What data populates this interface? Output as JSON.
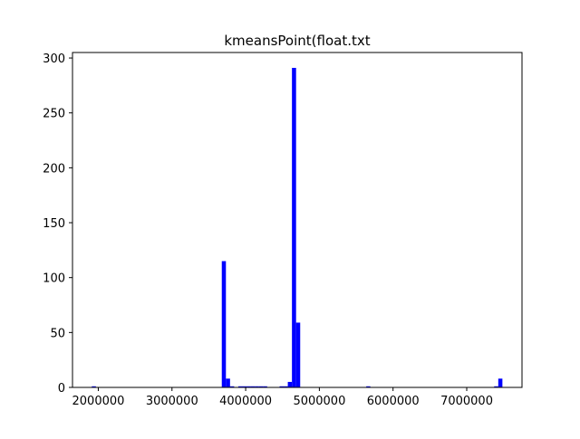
{
  "chart_data": {
    "type": "bar",
    "title": "kmeansPoint(float.txt",
    "xlabel": "",
    "ylabel": "",
    "xlim": [
      1650000,
      7750000
    ],
    "ylim": [
      0,
      305
    ],
    "bin_width": 56000,
    "color": "#0000ff",
    "xticks": [
      2000000,
      3000000,
      4000000,
      5000000,
      6000000,
      7000000
    ],
    "xtick_labels": [
      "2000000",
      "3000000",
      "4000000",
      "5000000",
      "6000000",
      "7000000"
    ],
    "yticks": [
      0,
      50,
      100,
      150,
      200,
      250,
      300
    ],
    "ytick_labels": [
      "0",
      "50",
      "100",
      "150",
      "200",
      "250",
      "300"
    ],
    "bars": [
      {
        "x": 1912000,
        "value": 1
      },
      {
        "x": 3676000,
        "value": 115
      },
      {
        "x": 3732000,
        "value": 8
      },
      {
        "x": 3788000,
        "value": 1
      },
      {
        "x": 3900000,
        "value": 1
      },
      {
        "x": 3956000,
        "value": 1
      },
      {
        "x": 4012000,
        "value": 1
      },
      {
        "x": 4068000,
        "value": 1
      },
      {
        "x": 4124000,
        "value": 1
      },
      {
        "x": 4180000,
        "value": 1
      },
      {
        "x": 4236000,
        "value": 1
      },
      {
        "x": 4460000,
        "value": 1
      },
      {
        "x": 4516000,
        "value": 1
      },
      {
        "x": 4572000,
        "value": 5
      },
      {
        "x": 4628000,
        "value": 291
      },
      {
        "x": 4684000,
        "value": 59
      },
      {
        "x": 5636000,
        "value": 1
      },
      {
        "x": 7372000,
        "value": 1
      },
      {
        "x": 7428000,
        "value": 8
      }
    ]
  }
}
